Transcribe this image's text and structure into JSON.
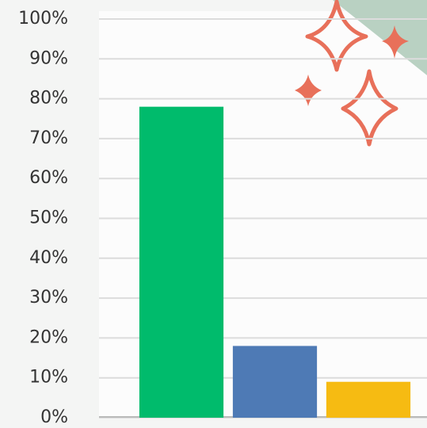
{
  "chart_data": {
    "type": "bar",
    "categories": [
      null,
      null,
      null
    ],
    "values": [
      78,
      18,
      9
    ],
    "colors": [
      "#00bb6c",
      "#4e7ab5",
      "#f6bb12"
    ],
    "ylim": [
      0,
      100
    ],
    "yticks": [
      {
        "value": 0,
        "label": "0%"
      },
      {
        "value": 10,
        "label": "10%"
      },
      {
        "value": 20,
        "label": "20%"
      },
      {
        "value": 30,
        "label": "30%"
      },
      {
        "value": 40,
        "label": "40%"
      },
      {
        "value": 50,
        "label": "50%"
      },
      {
        "value": 60,
        "label": "60%"
      },
      {
        "value": 70,
        "label": "70%"
      },
      {
        "value": 80,
        "label": "80%"
      },
      {
        "value": 90,
        "label": "90%"
      },
      {
        "value": 100,
        "label": "100%"
      }
    ],
    "grid": true
  }
}
